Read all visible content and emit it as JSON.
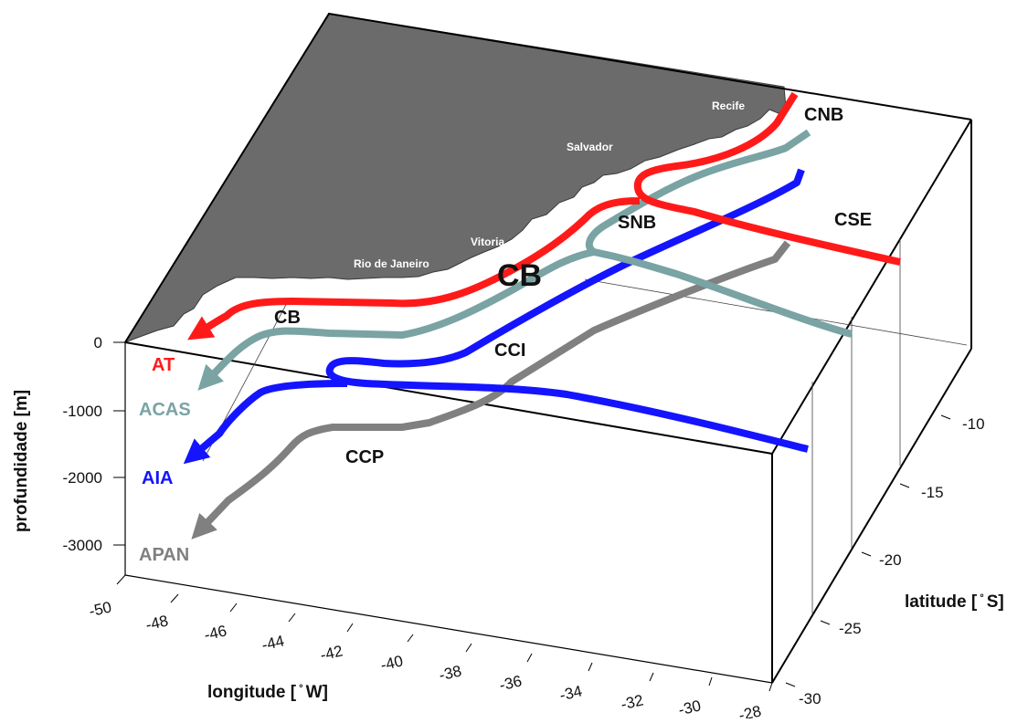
{
  "axes": {
    "depth_title": "profundidade [m]",
    "depth_ticks": [
      "0",
      "-1000",
      "-2000",
      "-3000"
    ],
    "lon_title": "longitude [ ̊ W]",
    "lon_ticks": [
      "-50",
      "-48",
      "-46",
      "-44",
      "-42",
      "-40",
      "-38",
      "-36",
      "-34",
      "-32",
      "-30",
      "-28"
    ],
    "lat_title": "latitude [ ̊ S]",
    "lat_ticks": [
      "-10",
      "-15",
      "-20",
      "-25",
      "-30"
    ]
  },
  "cities": [
    "Recife",
    "Salvador",
    "Vitoria",
    "Rio de Janeiro"
  ],
  "currents": {
    "cnb": "CNB",
    "cse": "CSE",
    "snb": "SNB",
    "cb_main": "CB",
    "cb_small": "CB",
    "cci": "CCI",
    "ccp": "CCP"
  },
  "water_masses": [
    {
      "label": "AT",
      "color": "#ff1a1a"
    },
    {
      "label": "ACAS",
      "color": "#7aa3a3"
    },
    {
      "label": "AIA",
      "color": "#1414ff"
    },
    {
      "label": "APAN",
      "color": "#808080"
    }
  ],
  "colors": {
    "land": "#6b6b6b",
    "at": "#ff1a1a",
    "acas": "#7aa3a3",
    "aia": "#1414ff",
    "apan": "#808080"
  }
}
